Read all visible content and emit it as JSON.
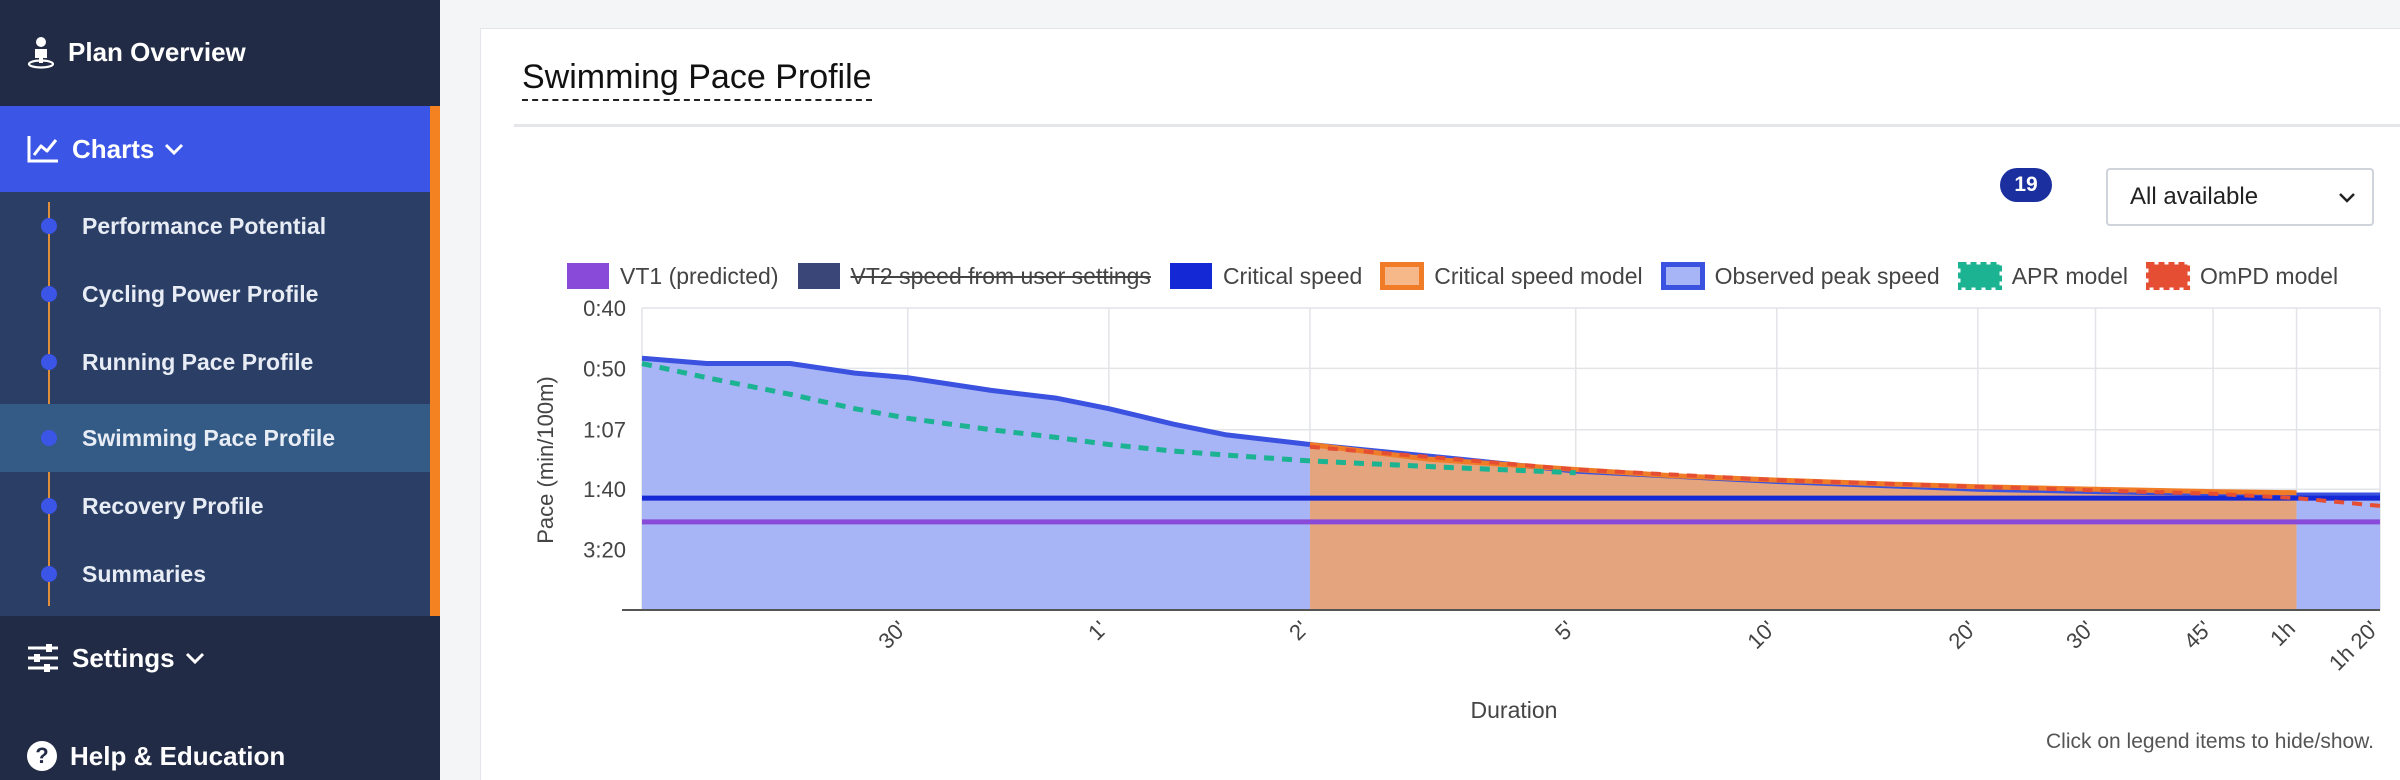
{
  "sidebar": {
    "plan_overview": "Plan Overview",
    "charts": "Charts",
    "items": [
      {
        "label": "Performance Potential",
        "active": false
      },
      {
        "label": "Cycling Power Profile",
        "active": false
      },
      {
        "label": "Running Pace Profile",
        "active": false
      },
      {
        "label": "Swimming Pace Profile",
        "active": true
      },
      {
        "label": "Recovery Profile",
        "active": false
      },
      {
        "label": "Summaries",
        "active": false
      }
    ],
    "settings": "Settings",
    "help": "Help & Education"
  },
  "main": {
    "title": "Swimming Pace Profile",
    "badge_count": "19",
    "select_value": "All available",
    "note": "Click on legend items to hide/show."
  },
  "colors": {
    "vt1": "#8a4ad9",
    "vt2": "#3a4677",
    "critical_speed": "#1428d6",
    "cs_model": "#f07c28",
    "observed": "#3b52e0",
    "apr": "#1bb391",
    "ompd": "#e54e33"
  },
  "chart_data": {
    "type": "area",
    "xlabel": "Duration",
    "ylabel": "Pace (min/100m)",
    "x_scale": "log",
    "y_scale": "reciprocal",
    "x_range_seconds": [
      12,
      4800
    ],
    "y_range_pace": [
      "0:40",
      "infinite"
    ],
    "grid": true,
    "legend_position": "top",
    "x_ticks": [
      {
        "label": "30'",
        "seconds": 30
      },
      {
        "label": "1'",
        "seconds": 60
      },
      {
        "label": "2'",
        "seconds": 120
      },
      {
        "label": "5'",
        "seconds": 300
      },
      {
        "label": "10'",
        "seconds": 600
      },
      {
        "label": "20'",
        "seconds": 1200
      },
      {
        "label": "30'",
        "seconds": 1800
      },
      {
        "label": "45'",
        "seconds": 2700
      },
      {
        "label": "1h",
        "seconds": 3600
      },
      {
        "label": "1h 20'",
        "seconds": 4800
      }
    ],
    "y_ticks": [
      "0:40",
      "0:50",
      "1:07",
      "1:40",
      "3:20"
    ],
    "series": [
      {
        "name": "VT1 (predicted)",
        "key": "vt1",
        "type": "line",
        "pace": "2:17",
        "hidden": false
      },
      {
        "name": "VT2 speed from user settings",
        "key": "vt2",
        "type": "line",
        "hidden": true
      },
      {
        "name": "Critical speed",
        "key": "critical_speed",
        "type": "line",
        "pace": "1:48",
        "hidden": false
      },
      {
        "name": "Critical speed model",
        "key": "cs_model",
        "type": "area",
        "x_seconds": [
          120,
          180,
          300,
          420,
          600,
          900,
          1200,
          1800,
          2700,
          3600
        ],
        "pace": [
          "1:13",
          "1:20",
          "1:26",
          "1:30",
          "1:33",
          "1:36",
          "1:38",
          "1:40",
          "1:42",
          "1:43"
        ],
        "hidden": false
      },
      {
        "name": "Observed peak speed",
        "key": "observed",
        "type": "area",
        "x_seconds": [
          12,
          15,
          20,
          25,
          30,
          40,
          50,
          60,
          75,
          90,
          120,
          200,
          300,
          600,
          1200,
          1800,
          3600,
          4800
        ],
        "pace": [
          "0:48",
          "0:49",
          "0:49",
          "0:51",
          "0:52",
          "0:55",
          "0:57",
          "1:00",
          "1:05",
          "1:09",
          "1:13",
          "1:20",
          "1:27",
          "1:34",
          "1:40",
          "1:42",
          "1:45",
          "1:45"
        ],
        "hidden": false
      },
      {
        "name": "APR model",
        "key": "apr",
        "type": "line",
        "dashed": true,
        "x_seconds": [
          12,
          15,
          20,
          25,
          30,
          40,
          50,
          60,
          75,
          90,
          120,
          200,
          300
        ],
        "pace": [
          "0:49",
          "0:52",
          "0:56",
          "1:00",
          "1:03",
          "1:07",
          "1:10",
          "1:13",
          "1:16",
          "1:18",
          "1:21",
          "1:25",
          "1:28"
        ],
        "hidden": false
      },
      {
        "name": "OmPD model",
        "key": "ompd",
        "type": "line",
        "dashed": true,
        "x_seconds": [
          120,
          300,
          600,
          1200,
          1800,
          2700,
          3600,
          4800
        ],
        "pace": [
          "1:14",
          "1:26",
          "1:33",
          "1:38",
          "1:41",
          "1:44",
          "1:48",
          "1:56"
        ],
        "hidden": false
      }
    ]
  }
}
